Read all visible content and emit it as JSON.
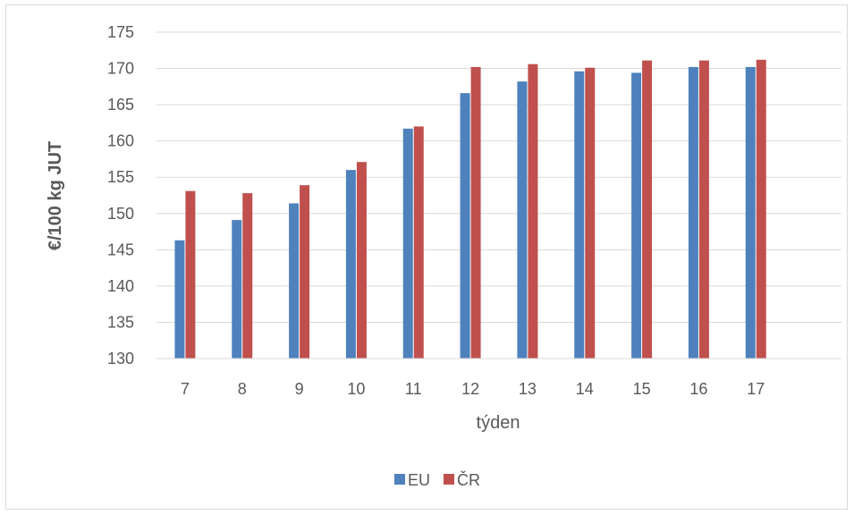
{
  "chart_data": {
    "type": "bar",
    "categories": [
      "7",
      "8",
      "9",
      "10",
      "11",
      "12",
      "13",
      "14",
      "15",
      "16",
      "17",
      ""
    ],
    "series": [
      {
        "name": "EU",
        "color": "#4f81bd",
        "values": [
          146.3,
          149.1,
          151.4,
          156.0,
          161.7,
          166.6,
          168.2,
          169.6,
          169.4,
          170.2,
          170.2,
          null
        ]
      },
      {
        "name": "ČR",
        "color": "#c0504d",
        "values": [
          153.1,
          152.8,
          153.9,
          157.1,
          162.0,
          170.2,
          170.6,
          170.1,
          171.1,
          171.1,
          171.2,
          null
        ]
      }
    ],
    "title": "",
    "xlabel": "týden",
    "ylabel": "€/100 kg JUT",
    "ylim": [
      130,
      175
    ],
    "yticks": [
      130,
      135,
      140,
      145,
      150,
      155,
      160,
      165,
      170,
      175
    ],
    "grid": true,
    "legend_position": "bottom"
  }
}
